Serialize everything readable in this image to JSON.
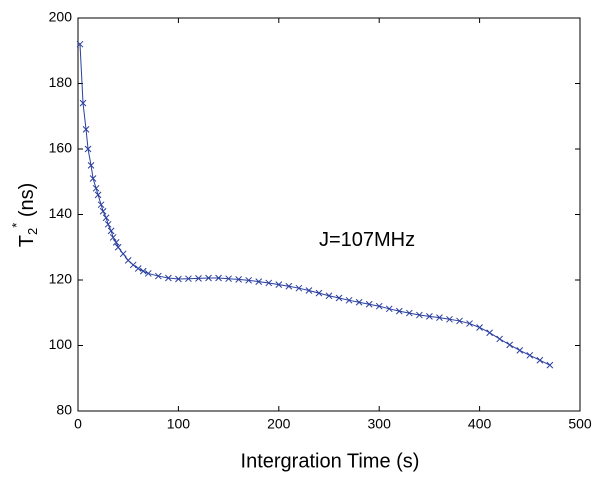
{
  "chart_data": {
    "type": "line",
    "xlabel": "Intergration Time (s)",
    "ylabel": {
      "main": "T",
      "sub": "2",
      "sup": "*",
      "unit": " (ns)"
    },
    "annotation": "J=107MHz",
    "annotation_at": [
      240,
      132
    ],
    "series": [
      {
        "name": "T2*",
        "color": "#2a3f9e",
        "marker": "x",
        "x": [
          2,
          5,
          8,
          10,
          13,
          15,
          18,
          20,
          23,
          25,
          28,
          30,
          33,
          35,
          38,
          40,
          45,
          50,
          55,
          60,
          65,
          70,
          80,
          90,
          100,
          110,
          120,
          130,
          140,
          150,
          160,
          170,
          180,
          190,
          200,
          210,
          220,
          230,
          240,
          250,
          260,
          270,
          280,
          290,
          300,
          310,
          320,
          330,
          340,
          350,
          360,
          370,
          380,
          390,
          400,
          410,
          420,
          430,
          440,
          450,
          460,
          470
        ],
        "values": [
          192,
          174,
          166,
          160,
          155,
          151,
          148,
          146,
          143,
          141,
          139,
          137,
          135,
          133,
          131.5,
          130,
          128,
          126,
          124.6,
          123.5,
          122.7,
          122,
          121.2,
          120.6,
          120.3,
          120.4,
          120.5,
          120.6,
          120.6,
          120.4,
          120.2,
          119.9,
          119.5,
          119.1,
          118.6,
          118.1,
          117.5,
          116.8,
          116,
          115.2,
          114.5,
          113.8,
          113.2,
          112.6,
          112,
          111.2,
          110.5,
          109.9,
          109.3,
          108.9,
          108.5,
          108,
          107.5,
          106.7,
          105.5,
          103.9,
          102,
          100.2,
          98.5,
          97,
          95.5,
          94
        ]
      }
    ],
    "xlim": [
      0,
      500
    ],
    "xticks": [
      0,
      100,
      200,
      300,
      400,
      500
    ],
    "ylim": [
      80,
      200
    ],
    "yticks": [
      80,
      100,
      120,
      140,
      160,
      180,
      200
    ],
    "grid": false
  }
}
